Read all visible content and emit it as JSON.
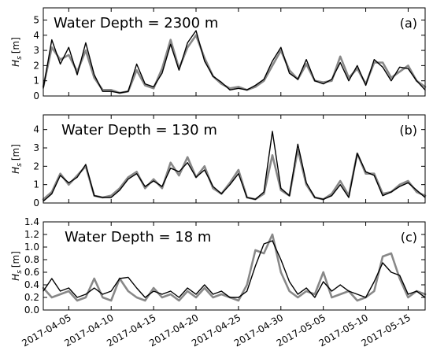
{
  "chart_data": [
    {
      "type": "line",
      "title": "Water Depth = 2300 m",
      "panel_label": "(a)",
      "ylabel_main": "H",
      "ylabel_sub": "s",
      "ylabel_unit": "[m]",
      "ylim": [
        0,
        5.8
      ],
      "yticks": [
        0,
        1,
        2,
        3,
        4,
        5
      ],
      "ytick_labels": [
        "0",
        "1",
        "2",
        "3",
        "4",
        "5"
      ],
      "x": [
        "2017-04-02",
        "2017-04-03",
        "2017-04-04",
        "2017-04-05",
        "2017-04-06",
        "2017-04-07",
        "2017-04-08",
        "2017-04-09",
        "2017-04-10",
        "2017-04-11",
        "2017-04-12",
        "2017-04-13",
        "2017-04-14",
        "2017-04-15",
        "2017-04-16",
        "2017-04-17",
        "2017-04-18",
        "2017-04-19",
        "2017-04-20",
        "2017-04-21",
        "2017-04-22",
        "2017-04-23",
        "2017-04-24",
        "2017-04-25",
        "2017-04-26",
        "2017-04-27",
        "2017-04-28",
        "2017-04-29",
        "2017-04-30",
        "2017-05-01",
        "2017-05-02",
        "2017-05-03",
        "2017-05-04",
        "2017-05-05",
        "2017-05-06",
        "2017-05-07",
        "2017-05-08",
        "2017-05-09",
        "2017-05-10",
        "2017-05-11",
        "2017-05-12",
        "2017-05-13",
        "2017-05-14",
        "2017-05-15",
        "2017-05-16",
        "2017-05-17"
      ],
      "series": [
        {
          "color": "#888888",
          "width": 2.6,
          "values": [
            0.6,
            3.2,
            2.4,
            2.7,
            1.6,
            3.0,
            1.2,
            0.4,
            0.4,
            0.2,
            0.3,
            1.7,
            0.7,
            0.5,
            1.8,
            3.7,
            1.8,
            3.2,
            4.0,
            2.5,
            1.3,
            0.8,
            0.5,
            0.6,
            0.4,
            0.6,
            1.0,
            2.0,
            3.0,
            1.7,
            1.1,
            2.1,
            1.0,
            0.9,
            1.0,
            2.6,
            1.2,
            1.8,
            0.8,
            2.2,
            2.2,
            1.2,
            1.6,
            2.0,
            1.0,
            0.6
          ]
        },
        {
          "color": "#000000",
          "width": 1.4,
          "values": [
            0.5,
            3.7,
            2.1,
            3.2,
            1.4,
            3.5,
            1.4,
            0.3,
            0.3,
            0.2,
            0.3,
            2.1,
            0.8,
            0.6,
            1.5,
            3.4,
            1.7,
            3.5,
            4.3,
            2.3,
            1.3,
            0.9,
            0.4,
            0.5,
            0.4,
            0.7,
            1.1,
            2.3,
            3.2,
            1.5,
            1.1,
            2.4,
            1.0,
            0.8,
            1.1,
            2.2,
            1.0,
            2.0,
            0.7,
            2.4,
            1.9,
            1.0,
            1.9,
            1.8,
            1.0,
            0.4
          ]
        }
      ]
    },
    {
      "type": "line",
      "title": "Water Depth = 130 m",
      "panel_label": "(b)",
      "ylabel_main": "H",
      "ylabel_sub": "s",
      "ylabel_unit": "[m]",
      "ylim": [
        0,
        4.8
      ],
      "yticks": [
        0,
        1,
        2,
        3,
        4
      ],
      "ytick_labels": [
        "0",
        "1",
        "2",
        "3",
        "4"
      ],
      "x": [
        "2017-04-02",
        "2017-04-03",
        "2017-04-04",
        "2017-04-05",
        "2017-04-06",
        "2017-04-07",
        "2017-04-08",
        "2017-04-09",
        "2017-04-10",
        "2017-04-11",
        "2017-04-12",
        "2017-04-13",
        "2017-04-14",
        "2017-04-15",
        "2017-04-16",
        "2017-04-17",
        "2017-04-18",
        "2017-04-19",
        "2017-04-20",
        "2017-04-21",
        "2017-04-22",
        "2017-04-23",
        "2017-04-24",
        "2017-04-25",
        "2017-04-26",
        "2017-04-27",
        "2017-04-28",
        "2017-04-29",
        "2017-04-30",
        "2017-05-01",
        "2017-05-02",
        "2017-05-03",
        "2017-05-04",
        "2017-05-05",
        "2017-05-06",
        "2017-05-07",
        "2017-05-08",
        "2017-05-09",
        "2017-05-10",
        "2017-05-11",
        "2017-05-12",
        "2017-05-13",
        "2017-05-14",
        "2017-05-15",
        "2017-05-16",
        "2017-05-17"
      ],
      "series": [
        {
          "color": "#888888",
          "width": 2.6,
          "values": [
            0.2,
            0.6,
            1.6,
            1.0,
            1.5,
            2.0,
            0.4,
            0.3,
            0.4,
            0.8,
            1.4,
            1.7,
            0.8,
            1.3,
            0.8,
            2.2,
            1.5,
            2.5,
            1.4,
            2.0,
            0.8,
            0.5,
            1.1,
            1.8,
            0.3,
            0.2,
            0.5,
            2.6,
            0.7,
            0.4,
            2.9,
            1.0,
            0.3,
            0.2,
            0.5,
            1.2,
            0.4,
            2.7,
            1.6,
            1.6,
            0.5,
            0.6,
            1.0,
            1.2,
            0.6,
            0.4
          ]
        },
        {
          "color": "#000000",
          "width": 1.4,
          "values": [
            0.1,
            0.5,
            1.5,
            1.1,
            1.4,
            2.1,
            0.4,
            0.3,
            0.3,
            0.7,
            1.3,
            1.6,
            0.9,
            1.2,
            0.9,
            1.9,
            1.7,
            2.2,
            1.4,
            1.8,
            0.9,
            0.5,
            1.0,
            1.6,
            0.3,
            0.2,
            0.6,
            3.9,
            0.8,
            0.4,
            3.2,
            1.1,
            0.3,
            0.2,
            0.4,
            1.0,
            0.3,
            2.7,
            1.7,
            1.5,
            0.4,
            0.6,
            0.9,
            1.1,
            0.7,
            0.3
          ]
        }
      ]
    },
    {
      "type": "line",
      "title": "Water Depth = 18 m",
      "panel_label": "(c)",
      "ylabel_main": "H",
      "ylabel_sub": "s",
      "ylabel_unit": "[m]",
      "ylim": [
        0,
        1.4
      ],
      "yticks": [
        0,
        0.2,
        0.4,
        0.6,
        0.8,
        1.0,
        1.2,
        1.4
      ],
      "ytick_labels": [
        "0.0",
        "0.2",
        "0.4",
        "0.6",
        "0.8",
        "1.0",
        "1.2",
        "1.4"
      ],
      "x": [
        "2017-04-02",
        "2017-04-03",
        "2017-04-04",
        "2017-04-05",
        "2017-04-06",
        "2017-04-07",
        "2017-04-08",
        "2017-04-09",
        "2017-04-10",
        "2017-04-11",
        "2017-04-12",
        "2017-04-13",
        "2017-04-14",
        "2017-04-15",
        "2017-04-16",
        "2017-04-17",
        "2017-04-18",
        "2017-04-19",
        "2017-04-20",
        "2017-04-21",
        "2017-04-22",
        "2017-04-23",
        "2017-04-24",
        "2017-04-25",
        "2017-04-26",
        "2017-04-27",
        "2017-04-28",
        "2017-04-29",
        "2017-04-30",
        "2017-05-01",
        "2017-05-02",
        "2017-05-03",
        "2017-05-04",
        "2017-05-05",
        "2017-05-06",
        "2017-05-07",
        "2017-05-08",
        "2017-05-09",
        "2017-05-10",
        "2017-05-11",
        "2017-05-12",
        "2017-05-13",
        "2017-05-14",
        "2017-05-15",
        "2017-05-16",
        "2017-05-17"
      ],
      "series": [
        {
          "color": "#888888",
          "width": 2.6,
          "values": [
            0.35,
            0.2,
            0.25,
            0.3,
            0.15,
            0.2,
            0.5,
            0.2,
            0.15,
            0.5,
            0.3,
            0.2,
            0.15,
            0.35,
            0.2,
            0.25,
            0.15,
            0.3,
            0.2,
            0.35,
            0.2,
            0.25,
            0.2,
            0.15,
            0.4,
            0.95,
            0.9,
            1.2,
            0.6,
            0.3,
            0.2,
            0.3,
            0.25,
            0.6,
            0.2,
            0.25,
            0.3,
            0.15,
            0.2,
            0.3,
            0.85,
            0.9,
            0.5,
            0.2,
            0.3,
            0.25
          ]
        },
        {
          "color": "#000000",
          "width": 1.4,
          "values": [
            0.3,
            0.5,
            0.3,
            0.35,
            0.2,
            0.25,
            0.35,
            0.25,
            0.3,
            0.5,
            0.52,
            0.35,
            0.2,
            0.3,
            0.25,
            0.3,
            0.2,
            0.35,
            0.25,
            0.4,
            0.25,
            0.3,
            0.2,
            0.2,
            0.3,
            0.7,
            1.05,
            1.1,
            0.8,
            0.45,
            0.25,
            0.35,
            0.2,
            0.45,
            0.3,
            0.4,
            0.3,
            0.25,
            0.2,
            0.45,
            0.75,
            0.6,
            0.55,
            0.25,
            0.3,
            0.2
          ]
        }
      ]
    }
  ],
  "xaxis": {
    "start": "2017-04-02",
    "end": "2017-05-17",
    "tick_labels": [
      "2017-04-05",
      "2017-04-10",
      "2017-04-15",
      "2017-04-20",
      "2017-04-25",
      "2017-04-30",
      "2017-05-05",
      "2017-05-10",
      "2017-05-15"
    ]
  }
}
